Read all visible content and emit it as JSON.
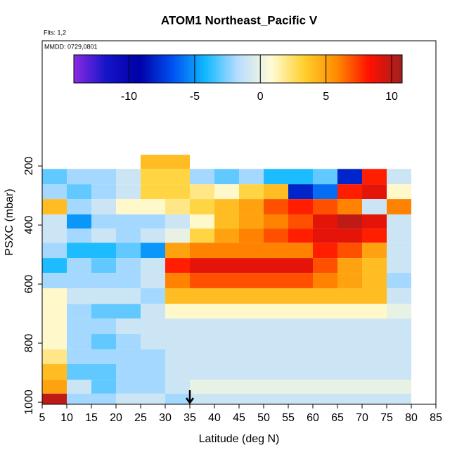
{
  "chart_data": {
    "type": "heatmap",
    "title": "ATOM1 Northeast_Pacific V",
    "note_flights": "Flts: 1,2",
    "note_dates": "MMDD: 0729,0801",
    "x_label": "Latitude (deg N)",
    "y_label": "PSXC (mbar)",
    "xlim": [
      5,
      85
    ],
    "xticks": [
      5,
      10,
      15,
      20,
      25,
      30,
      35,
      40,
      45,
      50,
      55,
      60,
      65,
      70,
      75,
      80,
      85
    ],
    "ylim": [
      1007,
      -224
    ],
    "yticks": [
      200,
      400,
      600,
      800,
      1000
    ],
    "marker_lat": 35,
    "colorbar_lim": [
      -14.2,
      10.8
    ],
    "colorbar_ticks": [
      -10,
      -5,
      0,
      5,
      10
    ],
    "colorscale": [
      "#8a2be2",
      "#1414c8",
      "#0000a8",
      "#0050f0",
      "#10b8ff",
      "#b8dcff",
      "#fffcd8",
      "#ffd030",
      "#ff8c00",
      "#ff1000",
      "#a02020"
    ],
    "x_edges": [
      5,
      10,
      15,
      20,
      25,
      30,
      35,
      40,
      45,
      50,
      55,
      60,
      65,
      70,
      75,
      80
    ],
    "p_edges": [
      162,
      210,
      262,
      312,
      364,
      412,
      460,
      512,
      562,
      614,
      667,
      717,
      769,
      821,
      871,
      924,
      971,
      1007
    ],
    "values": [
      [
        null,
        null,
        null,
        null,
        4,
        4,
        null,
        null,
        null,
        null,
        null,
        null,
        null,
        null,
        null
      ],
      [
        -3,
        -2,
        -2,
        -1,
        3,
        3,
        -2,
        -3,
        -2,
        -4,
        -4,
        -3,
        -8,
        8,
        -1
      ],
      [
        -2,
        -3,
        -2,
        -1,
        3,
        3,
        2,
        1,
        3,
        4,
        -8,
        -6,
        8,
        9,
        1
      ],
      [
        4,
        -2,
        -1,
        1,
        1,
        2,
        3,
        4,
        5,
        7,
        8,
        7,
        6,
        -1,
        6
      ],
      [
        -1,
        -5,
        -2,
        -2,
        -2,
        -1,
        1,
        4,
        5,
        6,
        7,
        9,
        10,
        9,
        -1
      ],
      [
        -1,
        -2,
        -1,
        -2,
        -1,
        0,
        3,
        5,
        6,
        7,
        8,
        9,
        9,
        8,
        -1
      ],
      [
        -2,
        -4,
        -4,
        -3,
        -5,
        5,
        6,
        6,
        6,
        6,
        6,
        8,
        7,
        5,
        -1
      ],
      [
        -4,
        -2,
        -3,
        -2,
        -1,
        8,
        9,
        9,
        9,
        9,
        9,
        7,
        5,
        4,
        -1
      ],
      [
        -2,
        -2,
        -2,
        -2,
        -1,
        6,
        7,
        7,
        7,
        7,
        7,
        6,
        5,
        4,
        -2
      ],
      [
        1,
        -1,
        -1,
        -1,
        -2,
        4,
        4,
        4,
        4,
        4,
        4,
        4,
        4,
        4,
        -1
      ],
      [
        1,
        -2,
        -3,
        -3,
        -1,
        1,
        1,
        1,
        1,
        1,
        1,
        1,
        1,
        1,
        0
      ],
      [
        1,
        -2,
        -2,
        -1,
        -1,
        -1,
        -1,
        -1,
        -1,
        -1,
        -1,
        -1,
        -1,
        -1,
        -1
      ],
      [
        1,
        -2,
        -3,
        -2,
        -1,
        -1,
        -1,
        -1,
        -1,
        -1,
        -1,
        -1,
        -1,
        -1,
        -1
      ],
      [
        2,
        -2,
        -2,
        -2,
        -2,
        -1,
        -1,
        -1,
        -1,
        -1,
        -1,
        -1,
        -1,
        -1,
        -1
      ],
      [
        4,
        -3,
        -3,
        -2,
        -2,
        -1,
        -1,
        -1,
        -1,
        -1,
        -1,
        -1,
        -1,
        -1,
        -1
      ],
      [
        5,
        -1,
        -3,
        -2,
        -2,
        -1,
        0,
        0,
        0,
        0,
        0,
        0,
        0,
        0,
        0
      ],
      [
        10,
        -2,
        -2,
        -1,
        -1,
        -2,
        -1,
        -1,
        -1,
        -1,
        -1,
        -1,
        -1,
        -1,
        -1
      ]
    ]
  }
}
